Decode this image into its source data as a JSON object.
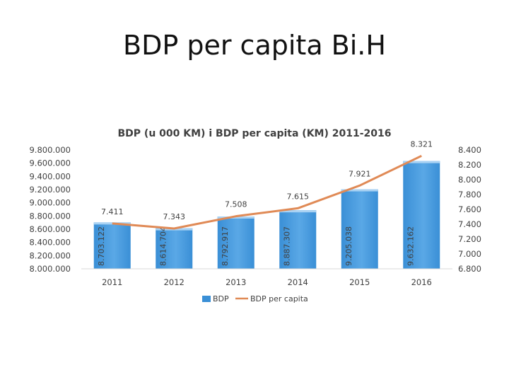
{
  "slide": {
    "title": "BDP per capita Bi.H"
  },
  "colors": {
    "bar": "#3a8fd6",
    "bar_top": "#a9d2f3",
    "line": "#e08a56"
  },
  "chart_data": {
    "type": "bar",
    "title": "BDP (u 000 KM) i BDP per capita (KM) 2011-2016",
    "categories": [
      "2011",
      "2012",
      "2013",
      "2014",
      "2015",
      "2016"
    ],
    "series": [
      {
        "name": "BDP",
        "type": "bar",
        "axis": "left",
        "values": [
          8703.122,
          8614.704,
          8792.917,
          8887.307,
          9205.038,
          9632.162
        ],
        "labels": [
          "8.703.122",
          "8.614.704",
          "8.792.917",
          "8.887.307",
          "9.205.038",
          "9.632.162"
        ]
      },
      {
        "name": "BDP per capita",
        "type": "line",
        "axis": "right",
        "values": [
          7411,
          7343,
          7508,
          7615,
          7921,
          8321
        ],
        "labels": [
          "7.411",
          "7.343",
          "7.508",
          "7.615",
          "7.921",
          "8.321"
        ]
      }
    ],
    "y_left": {
      "min": 8000,
      "max": 9800,
      "ticks": [
        "8.000.000",
        "8.200.000",
        "8.400.000",
        "8.600.000",
        "8.800.000",
        "9.000.000",
        "9.200.000",
        "9.400.000",
        "9.600.000",
        "9.800.000"
      ]
    },
    "y_right": {
      "min": 6800,
      "max": 8400,
      "ticks": [
        "6.800",
        "7.000",
        "7.200",
        "7.400",
        "7.600",
        "7.800",
        "8.000",
        "8.200",
        "8.400"
      ]
    },
    "legend": {
      "position": "bottom",
      "entries": [
        "BDP",
        "BDP per capita"
      ]
    },
    "grid": false
  }
}
